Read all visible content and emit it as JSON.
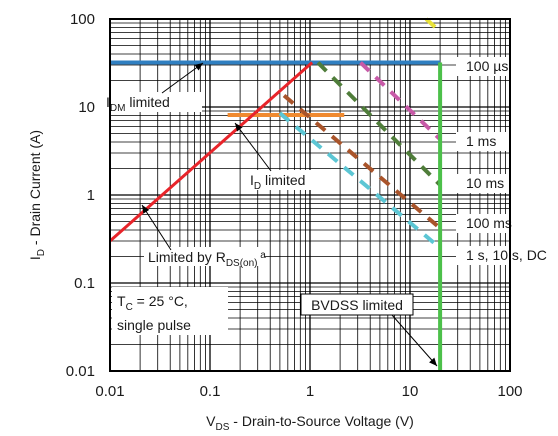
{
  "chart_data": {
    "type": "line",
    "x_scale": "log",
    "y_scale": "log",
    "xlim": [
      0.01,
      100
    ],
    "ylim": [
      0.01,
      100
    ],
    "grid": true,
    "x_ticks": [
      "0.01",
      "0.1",
      "1",
      "10",
      "100"
    ],
    "y_ticks": [
      "100",
      "10",
      "1",
      "0.1",
      "0.01"
    ],
    "xlabel": {
      "main": "V",
      "sub": "DS",
      "rest": " - Drain-to-Source Voltage (V)"
    },
    "ylabel": {
      "main": "I",
      "sub": "D",
      "rest": " - Drain Current (A)"
    },
    "series": [
      {
        "name": "100 µs",
        "style": "dashed",
        "color": "#e8e23a",
        "x": [
          14.5,
          20
        ],
        "y": [
          100,
          72
        ]
      },
      {
        "name": "1 ms",
        "style": "dashed",
        "color": "#c85aa8",
        "x": [
          3.2,
          20
        ],
        "y": [
          32,
          4.3
        ]
      },
      {
        "name": "10 ms",
        "style": "dashed",
        "color": "#4f7d3a",
        "x": [
          1.2,
          20
        ],
        "y": [
          32,
          1.3
        ]
      },
      {
        "name": "100 ms",
        "style": "dashed",
        "color": "#a9542a",
        "x": [
          0.55,
          20
        ],
        "y": [
          13.5,
          0.42
        ]
      },
      {
        "name": "1 s, 10 s, DC",
        "style": "dashed",
        "color": "#5cc6d4",
        "x": [
          0.5,
          20
        ],
        "y": [
          8.5,
          0.25
        ]
      }
    ],
    "limits": {
      "idm": {
        "color": "#2f7fc1",
        "x": [
          0.01,
          20
        ],
        "y": [
          32,
          32
        ]
      },
      "id": {
        "color": "#f08a30",
        "x": [
          0.15,
          2.2
        ],
        "y": [
          8.1,
          8.1
        ]
      },
      "rds": {
        "color": "#e8242a",
        "x": [
          0.01,
          1.05
        ],
        "y": [
          0.3,
          32
        ]
      },
      "bvdss": {
        "color": "#4cc04a",
        "x": [
          20,
          20
        ],
        "y": [
          0.01,
          32
        ]
      }
    },
    "annotations": {
      "idm": {
        "main": "I",
        "sub": "DM",
        "rest": " limited"
      },
      "id": {
        "main": "I",
        "sub": "D",
        "rest": " limited"
      },
      "rds": {
        "main": "Limited by R",
        "sub": "DS(on)",
        "sup": "a"
      },
      "tc": {
        "line1_main": "T",
        "line1_sub": "C",
        "line1_rest": " = 25 °C,",
        "line2": "single pulse"
      },
      "bvdss": "BVDSS limited"
    }
  }
}
